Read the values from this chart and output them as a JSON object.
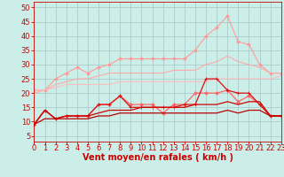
{
  "background_color": "#cceee8",
  "grid_color": "#aacccc",
  "xlabel": "Vent moyen/en rafales ( km/h )",
  "xlabel_color": "#cc0000",
  "xlabel_fontsize": 7,
  "tick_color": "#cc0000",
  "tick_fontsize": 6,
  "ylim": [
    3,
    52
  ],
  "xlim": [
    0,
    23
  ],
  "yticks": [
    5,
    10,
    15,
    20,
    25,
    30,
    35,
    40,
    45,
    50
  ],
  "xticks": [
    0,
    1,
    2,
    3,
    4,
    5,
    6,
    7,
    8,
    9,
    10,
    11,
    12,
    13,
    14,
    15,
    16,
    17,
    18,
    19,
    20,
    21,
    22,
    23
  ],
  "series": [
    {
      "color": "#ff9999",
      "linewidth": 0.8,
      "marker": "D",
      "markersize": 1.8,
      "values": [
        21,
        21,
        25,
        27,
        29,
        27,
        29,
        30,
        32,
        32,
        32,
        32,
        32,
        32,
        32,
        35,
        40,
        43,
        47,
        38,
        37,
        30,
        27,
        27
      ]
    },
    {
      "color": "#ffaaaa",
      "linewidth": 0.8,
      "marker": null,
      "markersize": 0,
      "values": [
        20,
        21,
        23,
        24,
        25,
        25,
        26,
        27,
        27,
        27,
        27,
        27,
        27,
        28,
        28,
        28,
        30,
        31,
        33,
        31,
        30,
        29,
        27,
        27
      ]
    },
    {
      "color": "#ffbbbb",
      "linewidth": 0.8,
      "marker": null,
      "markersize": 0,
      "values": [
        21,
        21,
        22,
        23,
        23,
        23,
        23,
        23,
        24,
        24,
        24,
        24,
        24,
        24,
        24,
        24,
        24,
        25,
        25,
        25,
        25,
        25,
        25,
        26
      ]
    },
    {
      "color": "#ff6666",
      "linewidth": 0.9,
      "marker": "D",
      "markersize": 1.8,
      "values": [
        9,
        14,
        11,
        12,
        12,
        12,
        16,
        16,
        19,
        16,
        16,
        16,
        13,
        16,
        16,
        20,
        20,
        20,
        21,
        17,
        19,
        16,
        12,
        12
      ]
    },
    {
      "color": "#dd1111",
      "linewidth": 0.9,
      "marker": "+",
      "markersize": 3,
      "values": [
        9,
        14,
        11,
        12,
        12,
        12,
        16,
        16,
        19,
        15,
        15,
        15,
        15,
        15,
        16,
        16,
        25,
        25,
        21,
        20,
        20,
        16,
        12,
        12
      ]
    },
    {
      "color": "#cc0000",
      "linewidth": 0.9,
      "marker": null,
      "markersize": 0,
      "values": [
        9,
        14,
        11,
        12,
        12,
        12,
        13,
        14,
        14,
        14,
        15,
        15,
        15,
        15,
        15,
        16,
        16,
        16,
        17,
        16,
        17,
        17,
        12,
        12
      ]
    },
    {
      "color": "#bb0000",
      "linewidth": 0.9,
      "marker": null,
      "markersize": 0,
      "values": [
        9,
        11,
        11,
        11,
        11,
        11,
        12,
        12,
        13,
        13,
        13,
        13,
        13,
        13,
        13,
        13,
        13,
        13,
        14,
        13,
        14,
        14,
        12,
        12
      ]
    },
    {
      "color": "#cc0000",
      "linewidth": 0.8,
      "marker": null,
      "markersize": 0,
      "dash": [
        3,
        2
      ],
      "values": [
        2,
        2,
        2,
        2,
        2,
        2,
        2,
        2,
        2,
        2,
        2,
        2,
        2,
        2,
        2,
        2,
        2,
        2,
        2,
        2,
        2,
        2,
        2,
        2
      ]
    }
  ]
}
